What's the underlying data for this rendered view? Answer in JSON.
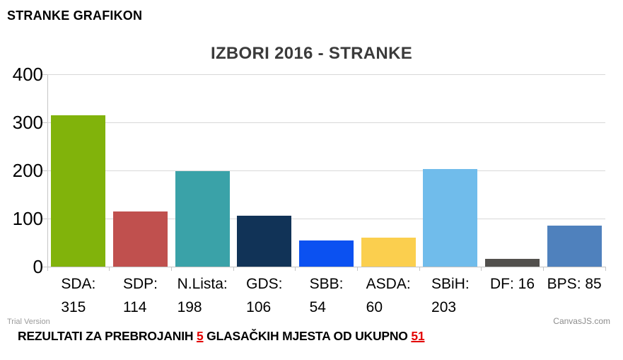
{
  "page": {
    "header": "STRANKE GRAFIKON",
    "watermarks": {
      "trial": "Trial Version",
      "brand": "CanvasJS.com"
    },
    "footer_note": {
      "prefix": "REZULTATI ZA PREBROJANIH ",
      "counted": "5",
      "middle": " GLASAČKIH MJESTA OD UKUPNO ",
      "total": "51"
    }
  },
  "chart_data": {
    "type": "bar",
    "title": "IZBORI 2016 - STRANKE",
    "categories": [
      "SDA",
      "SDP",
      "N.Lista",
      "GDS",
      "SBB",
      "ASDA",
      "SBiH",
      "DF",
      "BPS"
    ],
    "values": [
      315,
      114,
      198,
      106,
      54,
      60,
      203,
      16,
      85
    ],
    "colors": [
      "#81B30B",
      "#C0504E",
      "#3AA2A8",
      "#113357",
      "#0B51F1",
      "#FBCF4E",
      "#70BCEB",
      "#52504D",
      "#4F81BD"
    ],
    "label_wrap": [
      true,
      true,
      true,
      true,
      true,
      true,
      true,
      false,
      false
    ],
    "xlabel": "",
    "ylabel": "",
    "ylim": [
      0,
      400
    ],
    "yticks": [
      0,
      100,
      200,
      300,
      400
    ],
    "grid": true,
    "legend": "none"
  }
}
